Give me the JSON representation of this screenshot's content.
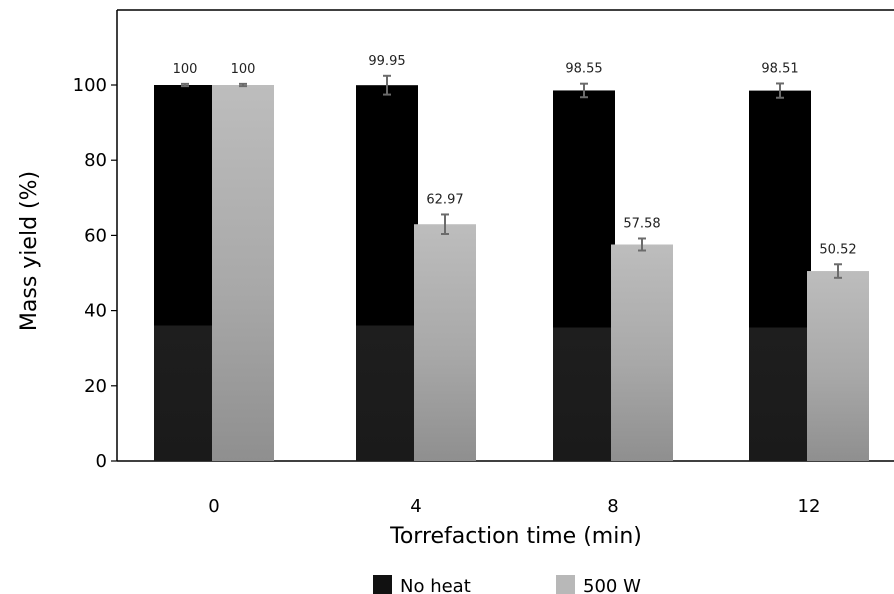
{
  "chart_data": {
    "type": "bar",
    "title": "",
    "xlabel": "Torrefaction time (min)",
    "ylabel": "Mass yield (%)",
    "categories": [
      "0",
      "4",
      "8",
      "12"
    ],
    "ylim": [
      0,
      120
    ],
    "yticks": [
      0,
      20,
      40,
      60,
      80,
      100
    ],
    "grid": false,
    "legend_position": "bottom",
    "series": [
      {
        "name": "No heat",
        "color": "#000000",
        "values": [
          100,
          99.95,
          98.55,
          98.51
        ],
        "labels": [
          "100",
          "99.95",
          "98.55",
          "98.51"
        ],
        "errors": [
          0.3,
          2.5,
          1.8,
          1.9
        ]
      },
      {
        "name": "500 W",
        "color": "#bdbdbd",
        "values": [
          100,
          62.97,
          57.58,
          50.52
        ],
        "labels": [
          "100",
          "62.97",
          "57.58",
          "50.52"
        ],
        "errors": [
          0.3,
          2.6,
          1.6,
          1.8
        ]
      }
    ]
  }
}
